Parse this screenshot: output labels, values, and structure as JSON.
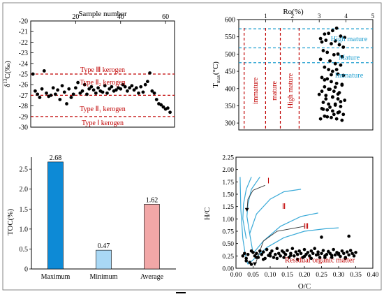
{
  "chart_data": [
    {
      "type": "scatter",
      "xlabel": "Sample number",
      "ylabel_base": "δ",
      "ylabel_sup": "13",
      "ylabel_rest": "C(‰)",
      "xlim": [
        0,
        64
      ],
      "ylim": [
        -30,
        -20
      ],
      "xticks": [
        "20",
        "40",
        "60"
      ],
      "yticks": [
        "-20",
        "-21",
        "-22",
        "-23",
        "-24",
        "-25",
        "-26",
        "-27",
        "-28",
        "-29",
        "-30"
      ],
      "boundaries": [
        -25.0,
        -27.0,
        -29.0
      ],
      "zone_labels": [
        {
          "text": "Type Ⅲ kerogen",
          "y": -24.6
        },
        {
          "text": "Type Ⅱ₂ kerogen",
          "y": -25.8
        },
        {
          "text": "Type Ⅱ₁ kerogen",
          "y": -28.3
        },
        {
          "text": "Type Ⅰ kerogen",
          "y": -29.6
        }
      ],
      "x": [
        1,
        2,
        3,
        4,
        5,
        6,
        7,
        8,
        9,
        10,
        11,
        12,
        13,
        14,
        15,
        16,
        17,
        18,
        19,
        20,
        21,
        22,
        23,
        24,
        25,
        26,
        27,
        28,
        29,
        30,
        31,
        32,
        33,
        34,
        35,
        36,
        37,
        38,
        39,
        40,
        41,
        42,
        43,
        44,
        45,
        46,
        47,
        48,
        49,
        50,
        51,
        52,
        53,
        54,
        55,
        56,
        57,
        58,
        59,
        60,
        61,
        62
      ],
      "y": [
        -25.0,
        -26.6,
        -26.9,
        -27.2,
        -26.4,
        -24.7,
        -26.8,
        -27.1,
        -27.0,
        -26.3,
        -26.9,
        -26.5,
        -27.4,
        -26.1,
        -26.7,
        -27.8,
        -26.4,
        -27.2,
        -26.9,
        -26.3,
        -25.8,
        -26.8,
        -26.6,
        -26.0,
        -26.9,
        -26.4,
        -26.2,
        -26.5,
        -26.8,
        -26.3,
        -26.6,
        -26.7,
        -26.1,
        -26.8,
        -26.4,
        -26.2,
        -26.6,
        -26.5,
        -26.3,
        -26.4,
        -26.0,
        -26.2,
        -26.6,
        -26.3,
        -26.1,
        -26.5,
        -26.3,
        -26.8,
        -26.2,
        -26.7,
        -26.0,
        -25.7,
        -24.9,
        -26.6,
        -26.8,
        -27.4,
        -27.8,
        -27.9,
        -28.1,
        -28.3,
        -28.2,
        -28.6
      ]
    },
    {
      "type": "scatter",
      "xlabel": "Ro(%)",
      "ylabel_base": "T",
      "ylabel_sub": "max",
      "ylabel_rest": "(°C)",
      "xlim": [
        0,
        5
      ],
      "ylim": [
        280,
        600
      ],
      "xticks": [
        "1",
        "2",
        "3",
        "4",
        "5"
      ],
      "yticks": [
        "600",
        "550",
        "500",
        "450",
        "400",
        "350",
        "300"
      ],
      "vertical_lines": [
        0.2,
        1.0,
        1.55
      ],
      "vertical_labels": [
        "immature",
        "mature",
        "High mature"
      ],
      "horizontal_lines": [
        573,
        475,
        518
      ],
      "horizontal_labels": [
        "High mature",
        "Mature",
        "Immature"
      ],
      "x": [
        3.05,
        3.2,
        3.35,
        3.5,
        3.65,
        3.8,
        3.95,
        3.1,
        3.25,
        3.45,
        3.6,
        3.75,
        3.9,
        3.15,
        3.3,
        3.55,
        3.7,
        3.85,
        3.05,
        3.4,
        3.6,
        3.8,
        3.2,
        3.35,
        3.5,
        3.7,
        3.9,
        3.1,
        3.3,
        3.45,
        3.65,
        3.85,
        3.2,
        3.4,
        3.55,
        3.75,
        3.0,
        3.25,
        3.5,
        3.7,
        3.95,
        3.15,
        3.35,
        3.6,
        3.8,
        3.1,
        3.3,
        3.5,
        3.7,
        3.9,
        3.2,
        3.45,
        3.65,
        3.85,
        3.05,
        3.3,
        3.55,
        3.75,
        3.15,
        3.4,
        3.6,
        3.8,
        3.25,
        3.5,
        3.7,
        3.1,
        3.35,
        3.6,
        3.85,
        3.2,
        3.45,
        3.65
      ],
      "y": [
        545,
        558,
        560,
        568,
        575,
        552,
        548,
        535,
        540,
        530,
        538,
        527,
        520,
        510,
        505,
        498,
        500,
        492,
        485,
        480,
        472,
        468,
        462,
        455,
        450,
        442,
        438,
        432,
        428,
        420,
        415,
        410,
        405,
        398,
        392,
        388,
        383,
        380,
        375,
        370,
        366,
        360,
        355,
        352,
        348,
        342,
        338,
        335,
        330,
        325,
        320,
        316,
        312,
        308,
        312,
        318,
        325,
        332,
        340,
        346,
        355,
        362,
        370,
        376,
        384,
        392,
        398,
        404,
        412,
        425,
        440,
        455
      ]
    },
    {
      "type": "bar",
      "categories": [
        "Maximum",
        "Minimum",
        "Average"
      ],
      "values": [
        2.68,
        0.47,
        1.62
      ],
      "labels": [
        "2.68",
        "0.47",
        "1.62"
      ],
      "colors": [
        "#0d8ad6",
        "#a9d8f5",
        "#f2a7a7"
      ],
      "ylabel": "TOC(%)",
      "ylim": [
        0,
        2.8
      ],
      "yticks": [
        "0",
        "0.5",
        "1.0",
        "1.5",
        "2.0",
        "2.5"
      ]
    },
    {
      "type": "scatter",
      "xlabel": "O/C",
      "ylabel": "H/C",
      "xlim": [
        0,
        0.4
      ],
      "ylim": [
        0,
        2.25
      ],
      "xticks": [
        "0.00",
        "0.05",
        "0.10",
        "0.15",
        "0.20",
        "0.25",
        "0.30",
        "0.35",
        "0.40"
      ],
      "yticks": [
        "0.00",
        "0.25",
        "0.50",
        "0.75",
        "1.00",
        "1.25",
        "1.50",
        "1.75",
        "2.00",
        "2.25"
      ],
      "region_labels": [
        "Ⅰ",
        "Ⅱ",
        "Ⅲ"
      ],
      "annotation": "Residual organic matter",
      "x": [
        0.02,
        0.025,
        0.03,
        0.035,
        0.04,
        0.05,
        0.055,
        0.06,
        0.065,
        0.07,
        0.075,
        0.08,
        0.085,
        0.09,
        0.095,
        0.1,
        0.105,
        0.11,
        0.115,
        0.12,
        0.125,
        0.13,
        0.135,
        0.14,
        0.145,
        0.15,
        0.155,
        0.16,
        0.165,
        0.17,
        0.175,
        0.18,
        0.185,
        0.19,
        0.195,
        0.2,
        0.205,
        0.21,
        0.215,
        0.22,
        0.225,
        0.23,
        0.235,
        0.24,
        0.245,
        0.25,
        0.255,
        0.26,
        0.265,
        0.27,
        0.275,
        0.28,
        0.285,
        0.29,
        0.295,
        0.3,
        0.305,
        0.31,
        0.315,
        0.32,
        0.325,
        0.33,
        0.335,
        0.34,
        0.345,
        0.35,
        0.03,
        0.045,
        0.06,
        0.08,
        0.1,
        0.12,
        0.14,
        0.16,
        0.18,
        0.2,
        0.22,
        0.24,
        0.26,
        0.28,
        0.3,
        0.32,
        0.33,
        0.25,
        0.045
      ],
      "y": [
        0.25,
        0.3,
        0.2,
        0.28,
        0.12,
        0.32,
        0.25,
        0.3,
        0.22,
        0.35,
        0.28,
        0.33,
        0.2,
        0.38,
        0.26,
        0.3,
        0.35,
        0.22,
        0.28,
        0.4,
        0.3,
        0.25,
        0.35,
        0.32,
        0.28,
        0.36,
        0.22,
        0.3,
        0.4,
        0.25,
        0.33,
        0.28,
        0.35,
        0.3,
        0.22,
        0.38,
        0.28,
        0.32,
        0.25,
        0.35,
        0.3,
        0.4,
        0.27,
        0.33,
        0.22,
        0.3,
        0.36,
        0.25,
        0.28,
        0.34,
        0.3,
        0.22,
        0.38,
        0.27,
        0.32,
        0.28,
        0.24,
        0.35,
        0.3,
        0.2,
        0.33,
        0.27,
        0.36,
        0.3,
        0.25,
        0.32,
        0.15,
        0.08,
        0.22,
        0.18,
        0.25,
        0.2,
        0.22,
        0.26,
        0.18,
        0.24,
        0.2,
        0.28,
        0.22,
        0.26,
        0.3,
        0.22,
        0.65,
        0.63,
        0.35
      ]
    }
  ]
}
